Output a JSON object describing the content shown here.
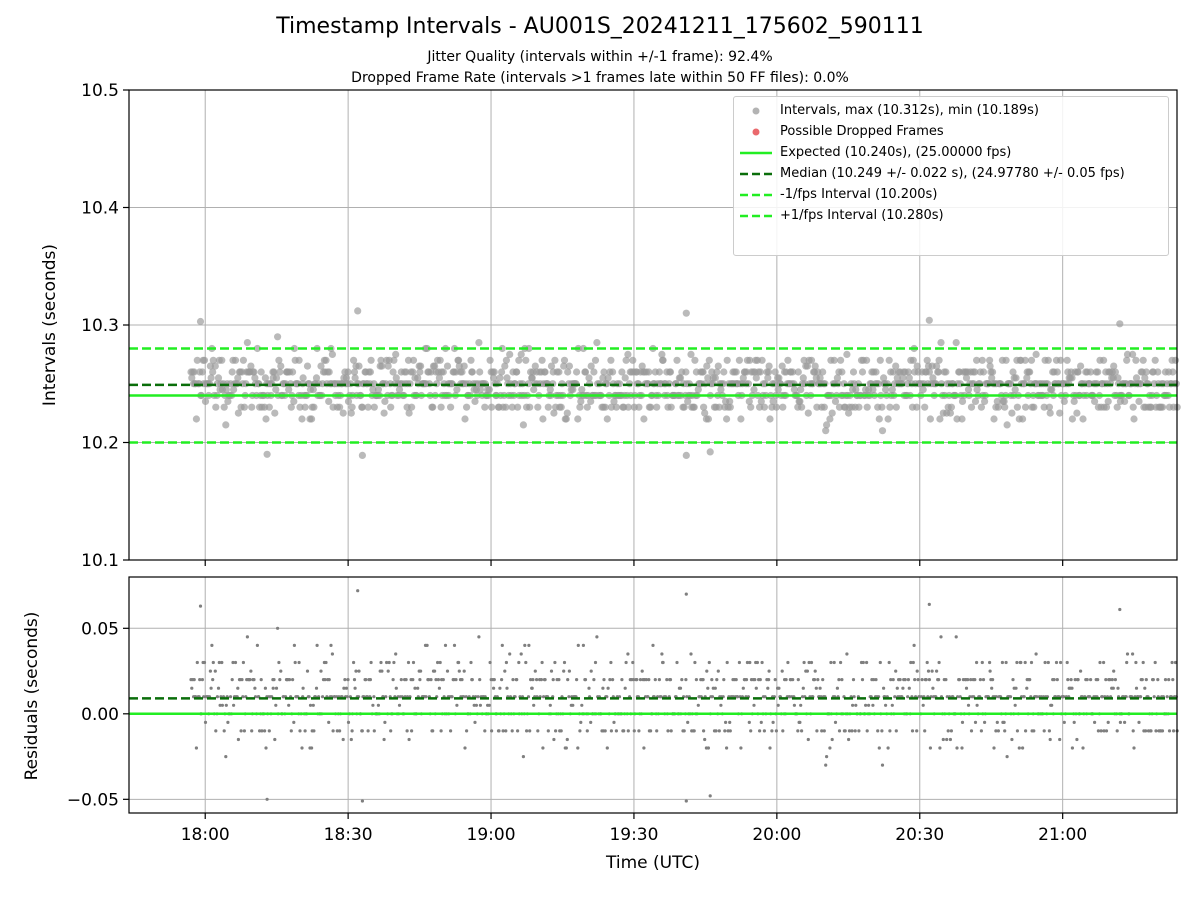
{
  "chart_data": [
    {
      "type": "scatter",
      "title": "Timestamp Intervals - AU001S_20241211_175602_590111",
      "subtitle_lines": [
        "Jitter Quality (intervals within +/-1 frame): 92.4%",
        "Dropped Frame Rate (intervals >1 frames late within 50 FF files): 0.0%"
      ],
      "xlabel": "",
      "ylabel": "Intervals (seconds)",
      "xlim": [
        "17:44",
        "21:24"
      ],
      "ylim": [
        10.1,
        10.5
      ],
      "y_ticks": [
        "10.1",
        "10.2",
        "10.3",
        "10.4",
        "10.5"
      ],
      "y_tick_values": [
        10.1,
        10.2,
        10.3,
        10.4,
        10.5
      ],
      "grid": true,
      "legend_placement": "upper right",
      "expected_interval": 10.24,
      "median_interval": 10.249,
      "minus_one_frame_interval": 10.2,
      "plus_one_frame_interval": 10.28,
      "x_start": "17:57",
      "x_end": "21:24",
      "series": [
        {
          "name": "Intervals, max (10.312s), min (10.189s)",
          "kind": "scatter",
          "color": "#999999",
          "summary": {
            "max": 10.312,
            "min": 10.189,
            "median": 10.249,
            "std": 0.022,
            "count": 1220
          },
          "notable_points": [
            {
              "x": "17:59",
              "y": 10.303
            },
            {
              "x": "18:13",
              "y": 10.19
            },
            {
              "x": "18:32",
              "y": 10.312
            },
            {
              "x": "18:33",
              "y": 10.189
            },
            {
              "x": "19:41",
              "y": 10.31
            },
            {
              "x": "19:41",
              "y": 10.189
            },
            {
              "x": "19:46",
              "y": 10.192
            },
            {
              "x": "20:32",
              "y": 10.304
            },
            {
              "x": "21:12",
              "y": 10.301
            }
          ]
        },
        {
          "name": "Possible Dropped Frames",
          "kind": "scatter",
          "color": "#e8595d",
          "values": []
        },
        {
          "name": "Expected (10.240s), (25.00000 fps)",
          "kind": "hline",
          "y": 10.24,
          "color": "#22ee22",
          "style": "solid"
        },
        {
          "name": "Median (10.249 +/- 0.022 s), (24.97780 +/- 0.05 fps)",
          "kind": "hline",
          "y": 10.249,
          "color": "#0a6e0a",
          "style": "dashed"
        },
        {
          "name": "-1/fps Interval (10.200s)",
          "kind": "hline",
          "y": 10.2,
          "color": "#22ee22",
          "style": "dashed"
        },
        {
          "name": "+1/fps Interval (10.280s)",
          "kind": "hline",
          "y": 10.28,
          "color": "#22ee22",
          "style": "dashed"
        }
      ]
    },
    {
      "type": "scatter",
      "title": "",
      "xlabel": "Time (UTC)",
      "ylabel": "Residuals (seconds)",
      "xlim": [
        "17:44",
        "21:24"
      ],
      "ylim": [
        -0.058,
        0.08
      ],
      "x_ticks": [
        "18:00",
        "18:30",
        "19:00",
        "19:30",
        "20:00",
        "20:30",
        "21:00"
      ],
      "y_ticks": [
        "−0.05",
        "0.00",
        "0.05"
      ],
      "y_tick_values": [
        -0.05,
        0.0,
        0.05
      ],
      "grid": true,
      "zero_line": 0.0,
      "median_residual": 0.009,
      "series": [
        {
          "name": "",
          "kind": "scatter",
          "color": "#7f7f7f",
          "summary": {
            "max": 0.072,
            "min": -0.051,
            "count": 1220
          }
        },
        {
          "name": "",
          "kind": "hline",
          "y": 0.0,
          "color": "#22ee22",
          "style": "solid"
        },
        {
          "name": "",
          "kind": "hline",
          "y": 0.009,
          "color": "#0a6e0a",
          "style": "dashed"
        }
      ]
    }
  ]
}
